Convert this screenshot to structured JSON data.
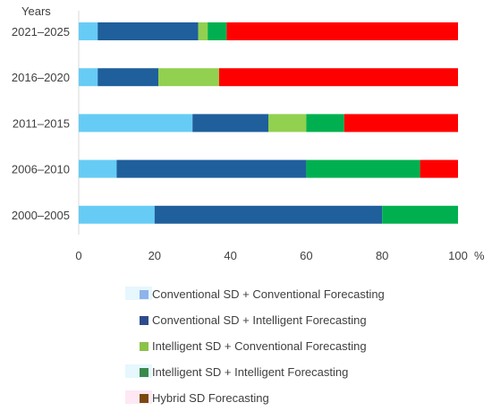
{
  "chart_data": {
    "type": "bar",
    "orientation": "horizontal",
    "stacked": true,
    "ylabel": "Years",
    "xlabel": "%",
    "xlim": [
      0,
      100
    ],
    "xticks": [
      "0",
      "20",
      "40",
      "60",
      "80",
      "100"
    ],
    "grid": false,
    "legend_position": "bottom",
    "categories": [
      "2021–2025",
      "2016–2020",
      "2011–2015",
      "2006–2010",
      "2000–2005"
    ],
    "series": [
      {
        "name": "Conventional SD + Conventional Forecasting",
        "color": "#66ccf5",
        "swatch_color": "#8fb3ea",
        "values": [
          5,
          5,
          30,
          10,
          20
        ]
      },
      {
        "name": "Conventional SD + Intelligent Forecasting",
        "color": "#1f5f9c",
        "swatch_color": "#2e4b8e",
        "values": [
          26.5,
          16,
          20,
          50,
          60
        ]
      },
      {
        "name": "Intelligent SD + Conventional Forecasting",
        "color": "#92d050",
        "swatch_color": "#8cc24a",
        "values": [
          2.5,
          16,
          10,
          0,
          0
        ]
      },
      {
        "name": "Intelligent SD + Intelligent Forecasting",
        "color": "#00b050",
        "swatch_color": "#3a8a4e",
        "values": [
          5,
          0,
          10,
          30,
          20
        ]
      },
      {
        "name": "Hybrid SD Forecasting",
        "color": "#ff0000",
        "swatch_color": "#7a4a0d",
        "values": [
          61,
          63,
          30,
          10,
          0
        ]
      }
    ]
  }
}
